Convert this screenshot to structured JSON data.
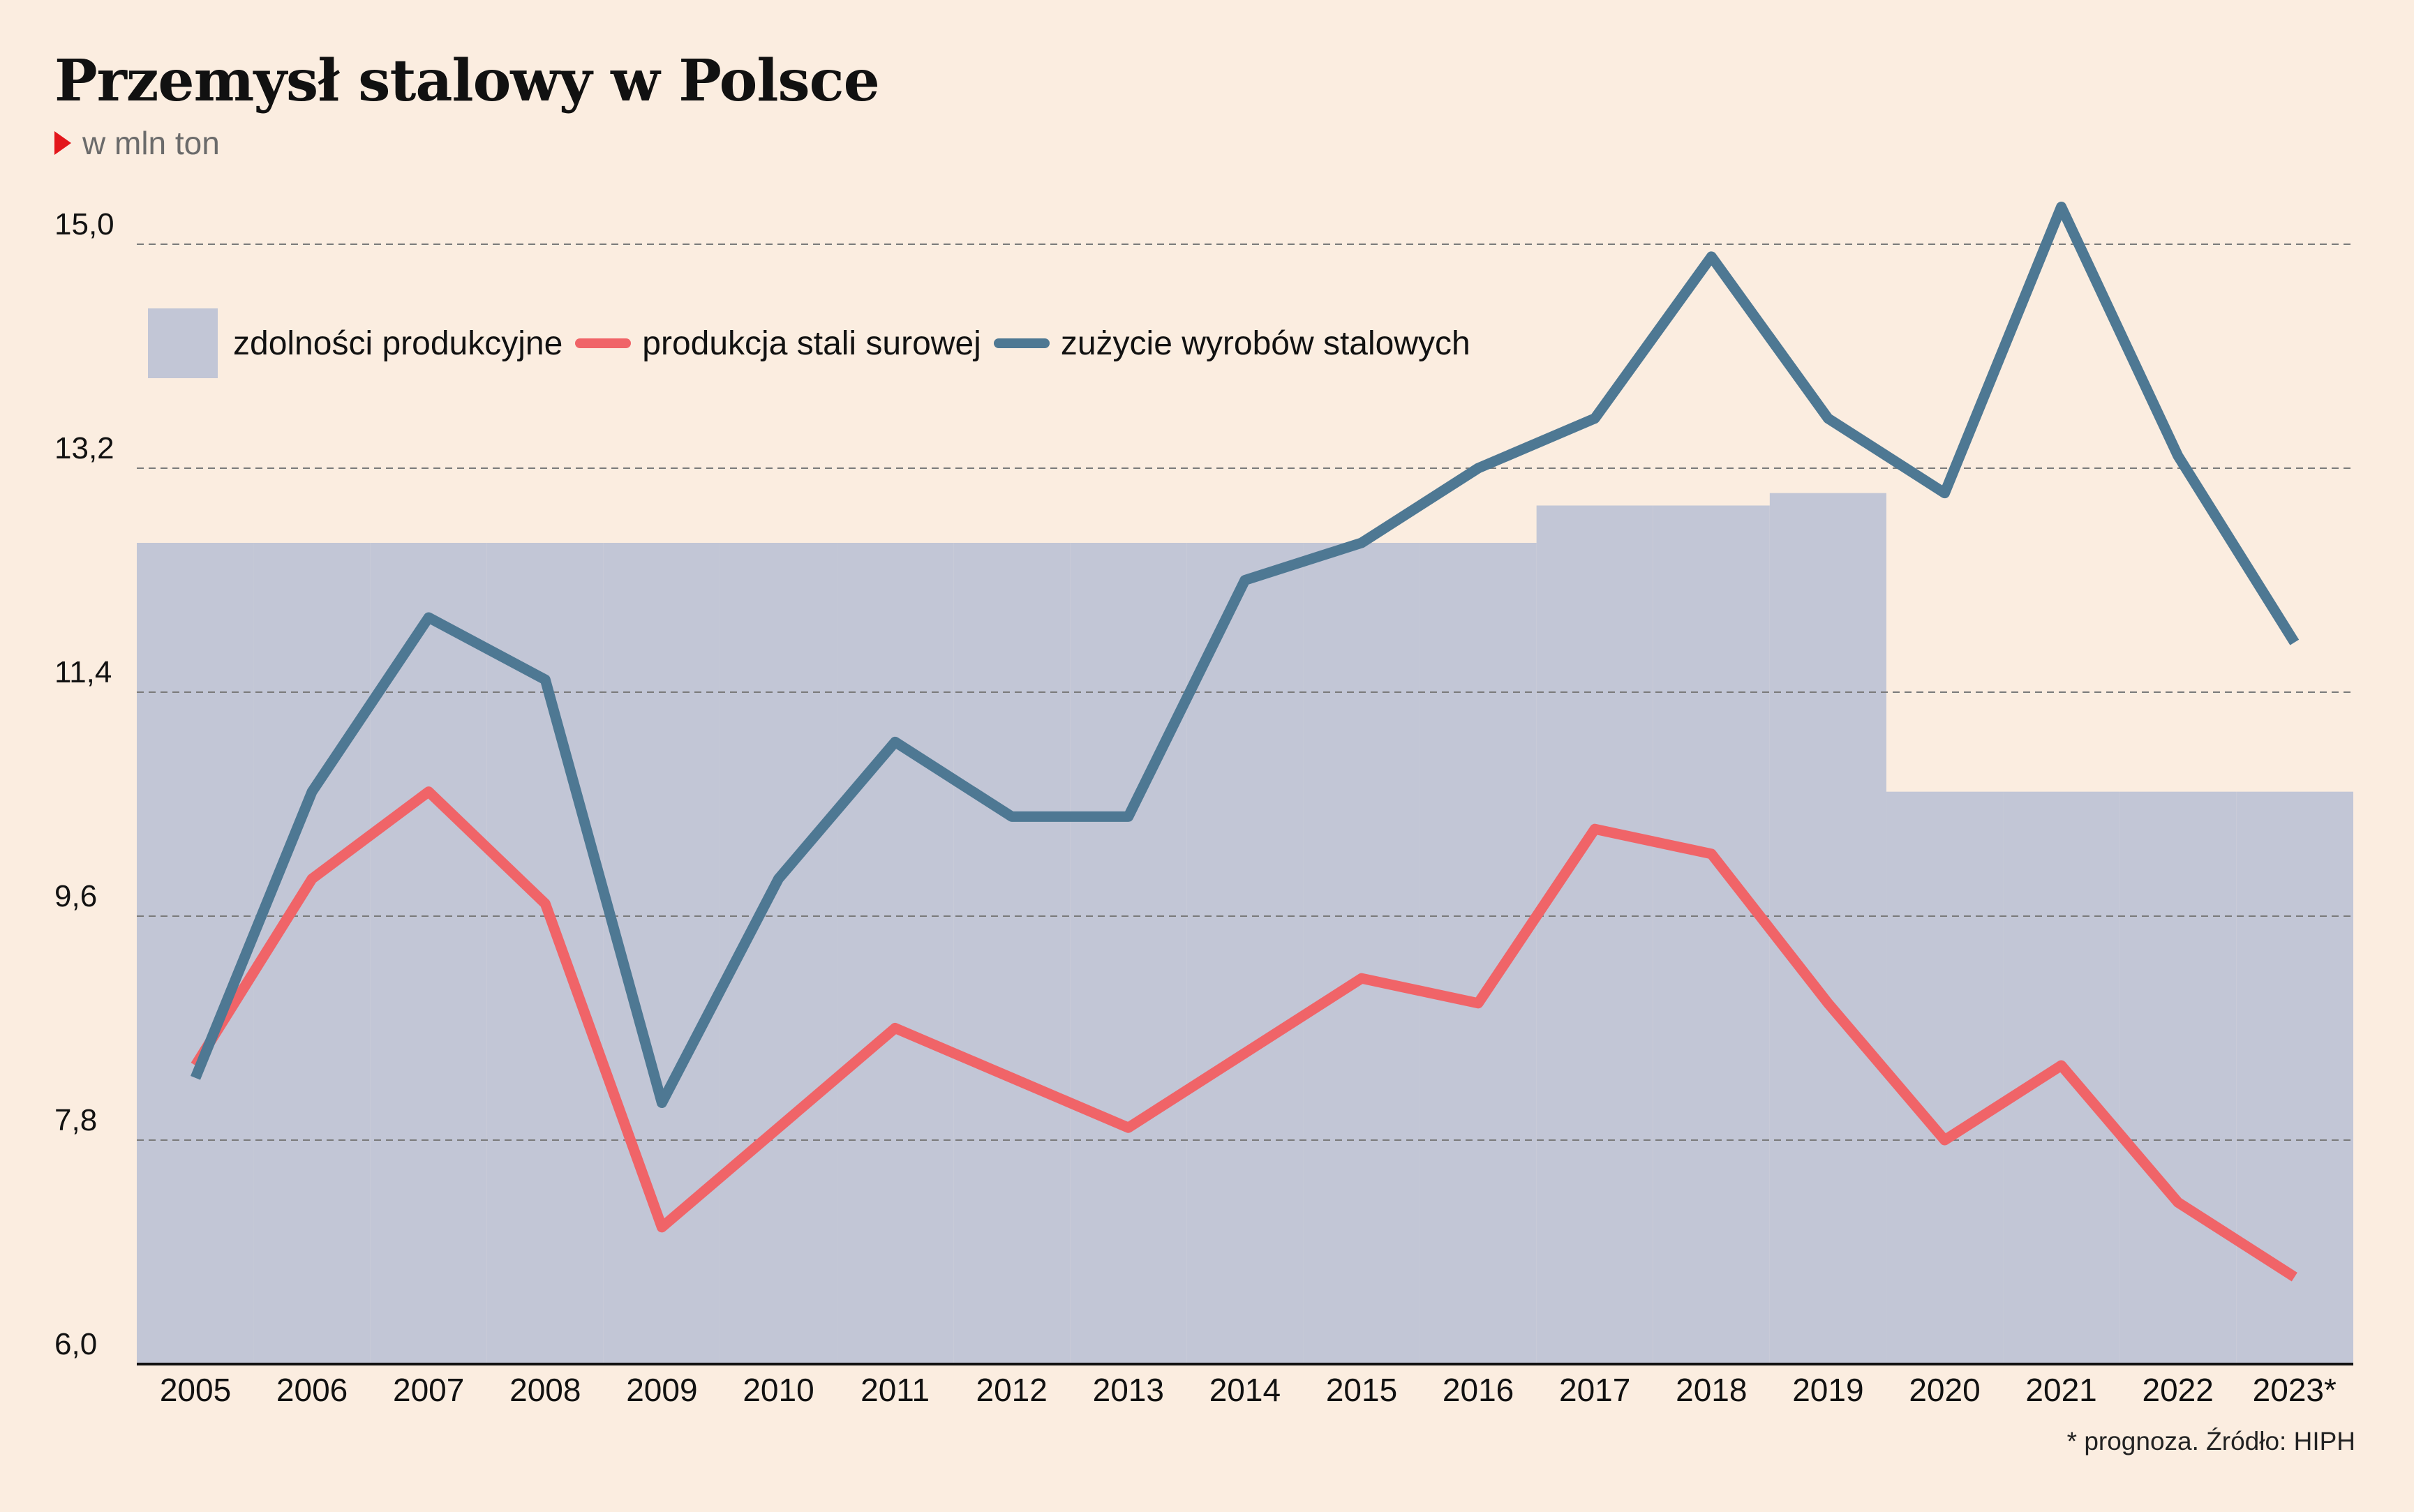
{
  "header": {
    "title": "Przemysł stalowy w Polsce",
    "subtitle": "w mln ton"
  },
  "footer": {
    "source": "* prognoza. Źródło: HIPH"
  },
  "legend": {
    "capacity": "zdolności produkcyjne",
    "production": "produkcja stali surowej",
    "consumption": "zużycie wyrobów stalowych"
  },
  "colors": {
    "background": "#fbede0",
    "capacity": "#c2c6d6",
    "production": "#f06468",
    "consumption": "#4e7893",
    "marker": "#e3161b"
  },
  "chart_data": {
    "type": "line",
    "title": "Przemysł stalowy w Polsce",
    "subtitle": "w mln ton",
    "categories": [
      "2005",
      "2006",
      "2007",
      "2008",
      "2009",
      "2010",
      "2011",
      "2012",
      "2013",
      "2014",
      "2015",
      "2016",
      "2017",
      "2018",
      "2019",
      "2020",
      "2021",
      "2022",
      "2023*"
    ],
    "ylim": [
      6.0,
      15.0
    ],
    "yticks": [
      6.0,
      7.8,
      9.6,
      11.4,
      13.2,
      15.0
    ],
    "ytick_labels": [
      "6,0",
      "7,8",
      "9,6",
      "11,4",
      "13,2",
      "15,0"
    ],
    "grid": true,
    "legend_position": "top-left",
    "series": [
      {
        "name": "zdolności produkcyjne",
        "type": "area",
        "values": [
          12.6,
          12.6,
          12.6,
          12.6,
          12.6,
          12.6,
          12.6,
          12.6,
          12.6,
          12.6,
          12.6,
          12.6,
          12.9,
          12.9,
          13.0,
          10.6,
          10.6,
          10.6,
          10.6
        ]
      },
      {
        "name": "produkcja stali surowej",
        "type": "line",
        "values": [
          8.4,
          9.9,
          10.6,
          9.7,
          7.1,
          7.9,
          8.7,
          8.3,
          7.9,
          8.5,
          9.1,
          8.9,
          10.3,
          10.1,
          8.9,
          7.8,
          8.4,
          7.3,
          6.7
        ]
      },
      {
        "name": "zużycie wyrobów stalowych",
        "type": "line",
        "values": [
          8.3,
          10.6,
          12.0,
          11.5,
          8.1,
          9.9,
          11.0,
          10.4,
          10.4,
          12.3,
          12.6,
          13.2,
          13.6,
          14.9,
          13.6,
          13.0,
          15.3,
          13.3,
          11.8
        ]
      }
    ]
  }
}
